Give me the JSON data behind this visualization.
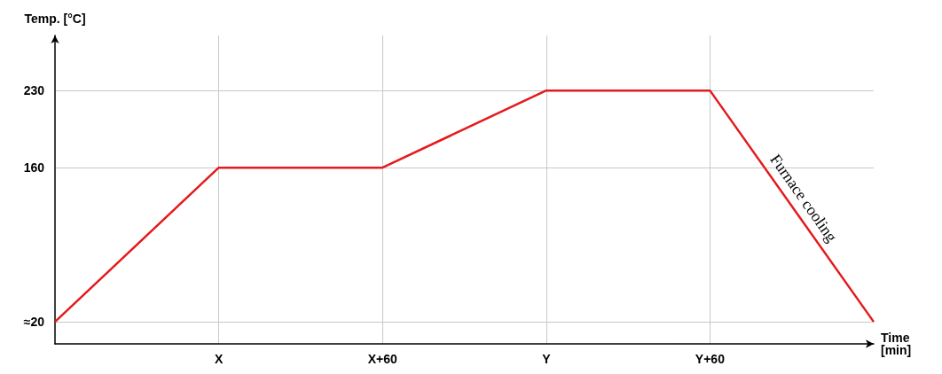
{
  "chart_data": {
    "type": "line",
    "xlabel": "Time\n[min]",
    "ylabel": "Temp. [°C]",
    "categories": [
      null,
      "X",
      "X+60",
      "Y",
      "Y+60",
      null
    ],
    "series": [
      {
        "color": "#e41a1c",
        "values": [
          20,
          160,
          160,
          230,
          230,
          20
        ]
      }
    ],
    "ylim": [
      0,
      280
    ],
    "yticks": [
      {
        "value": 20,
        "label": "≈20"
      },
      160,
      230
    ],
    "grid": true,
    "marker": "none",
    "line_style": "solid",
    "annotations": [
      "Furnace cooling"
    ]
  }
}
